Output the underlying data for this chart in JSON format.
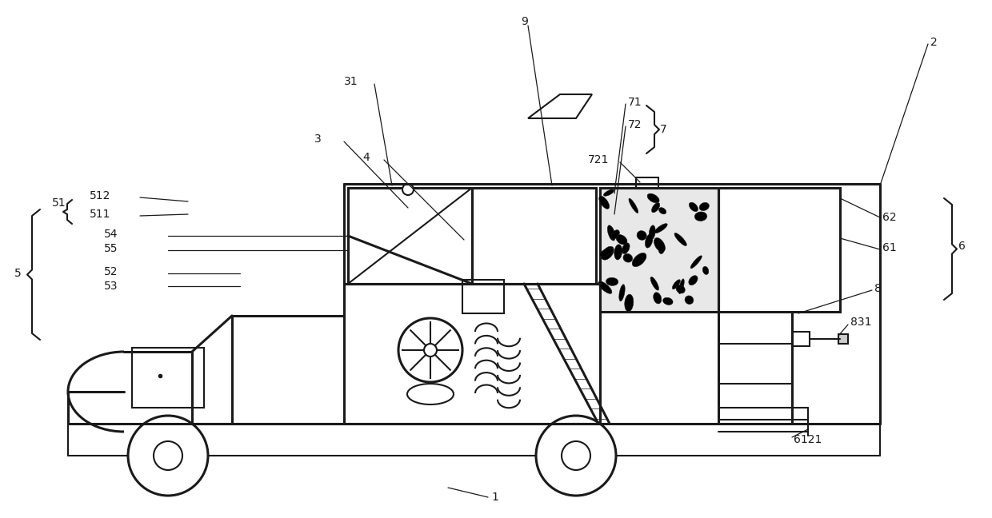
{
  "bg_color": "#ffffff",
  "line_color": "#1a1a1a",
  "label_color": "#1a1a1a",
  "fig_width": 12.4,
  "fig_height": 6.48
}
